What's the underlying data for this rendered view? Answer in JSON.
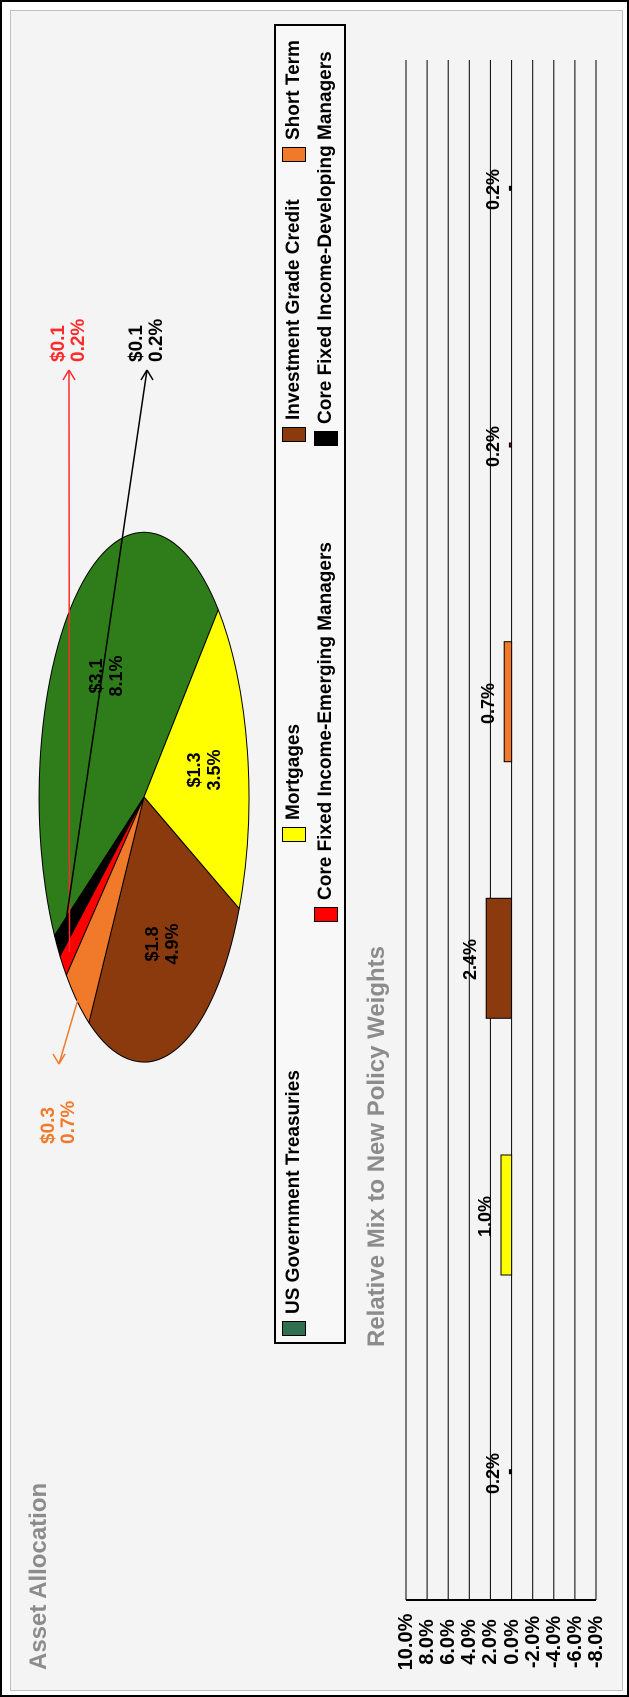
{
  "titles": {
    "asset_allocation": "Asset Allocation",
    "relative_mix": "Relative Mix to New Policy Weights"
  },
  "legend": [
    {
      "label": "US Government Treasuries",
      "color": "#2f6f4f"
    },
    {
      "label": "Mortgages",
      "color": "#ffff00"
    },
    {
      "label": "Investment Grade Credit",
      "color": "#8b3a0e"
    },
    {
      "label": "Short Term",
      "color": "#f07a2a"
    },
    {
      "label": "Core Fixed Income-Emerging Managers",
      "color": "#ff0000"
    },
    {
      "label": "Core Fixed Income-Developing Managers",
      "color": "#000000"
    }
  ],
  "chart_data": [
    {
      "type": "pie",
      "title": "Asset Allocation",
      "slices": [
        {
          "name": "US Government Treasuries",
          "value": 3.1,
          "percent": "8.1%",
          "label_amount": "$3.1",
          "color": "#2e7d1a"
        },
        {
          "name": "Mortgages",
          "value": 1.3,
          "percent": "3.5%",
          "label_amount": "$1.3",
          "color": "#ffff00"
        },
        {
          "name": "Investment Grade Credit",
          "value": 1.8,
          "percent": "4.9%",
          "label_amount": "$1.8",
          "color": "#8b3a0e"
        },
        {
          "name": "Short Term",
          "value": 0.3,
          "percent": "0.7%",
          "label_amount": "$0.3",
          "color": "#f07a2a"
        },
        {
          "name": "Core Fixed Income-Emerging Managers",
          "value": 0.1,
          "percent": "0.2%",
          "label_amount": "$0.1",
          "color": "#ff0000"
        },
        {
          "name": "Core Fixed Income-Developing Managers",
          "value": 0.1,
          "percent": "0.2%",
          "label_amount": "$0.1",
          "color": "#000000"
        }
      ]
    },
    {
      "type": "bar",
      "title": "Relative Mix to New Policy Weights",
      "categories": [
        "Core Fixed Income-Developing Managers",
        "Mortgages",
        "Investment Grade Credit",
        "Short Term",
        "Core Fixed Income-Emerging Managers",
        "Core Fixed Income-Developing Managers"
      ],
      "values": [
        0.2,
        1.0,
        2.4,
        0.7,
        0.2,
        0.2
      ],
      "labels": [
        "0.2%",
        "1.0%",
        "2.4%",
        "0.7%",
        "0.2%",
        "0.2%"
      ],
      "colors": [
        "#000000",
        "#ffff00",
        "#8b3a0e",
        "#f07a2a",
        "#8b0000",
        "#000000"
      ],
      "ylim": [
        -8,
        10
      ],
      "yticks": [
        "10.0%",
        "8.0%",
        "6.0%",
        "4.0%",
        "2.0%",
        "0.0%",
        "-2.0%",
        "-4.0%",
        "-6.0%",
        "-8.0%"
      ],
      "grid": true
    }
  ]
}
